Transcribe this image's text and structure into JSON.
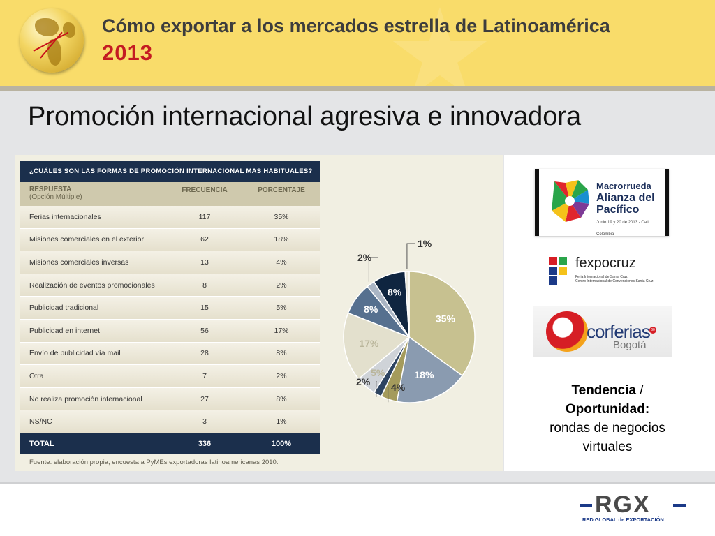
{
  "header": {
    "title": "Cómo exportar a los mercados estrella de Latinoamérica",
    "year": "2013"
  },
  "slide": {
    "title": "Promoción internacional agresiva e innovadora"
  },
  "table": {
    "question": "¿CUÁLES SON LAS FORMAS DE PROMOCIÓN INTERNACIONAL MAS HABITUALES?",
    "col_response": "RESPUESTA",
    "col_response_sub": "(Opción Múltiple)",
    "col_frequency": "FRECUENCIA",
    "col_percent": "PORCENTAJE",
    "rows": [
      {
        "label": "Ferias internacionales",
        "freq": "117",
        "pct": "35%"
      },
      {
        "label": "Misiones comerciales en el exterior",
        "freq": "62",
        "pct": "18%"
      },
      {
        "label": "Misiones comerciales inversas",
        "freq": "13",
        "pct": "4%"
      },
      {
        "label": "Realización de eventos promocionales",
        "freq": "8",
        "pct": "2%"
      },
      {
        "label": "Publicidad tradicional",
        "freq": "15",
        "pct": "5%"
      },
      {
        "label": "Publicidad en internet",
        "freq": "56",
        "pct": "17%"
      },
      {
        "label": "Envío de publicidad vía mail",
        "freq": "28",
        "pct": "8%"
      },
      {
        "label": "Otra",
        "freq": "7",
        "pct": "2%"
      },
      {
        "label": "No realiza promoción internacional",
        "freq": "27",
        "pct": "8%"
      },
      {
        "label": "NS/NC",
        "freq": "3",
        "pct": "1%"
      }
    ],
    "total_label": "TOTAL",
    "total_freq": "336",
    "total_pct": "100%",
    "source": "Fuente: elaboración propia, encuesta a PyMEs exportadoras latinoamericanas 2010."
  },
  "chart_data": {
    "type": "pie",
    "slices": [
      {
        "label": "35%",
        "value": 35,
        "color": "#c7c190"
      },
      {
        "label": "18%",
        "value": 18,
        "color": "#8a9bb0"
      },
      {
        "label": "4%",
        "value": 4,
        "color": "#a49b5c"
      },
      {
        "label": "2%",
        "value": 2,
        "color": "#2d4461"
      },
      {
        "label": "5%",
        "value": 5,
        "color": "#cfd3d8"
      },
      {
        "label": "17%",
        "value": 17,
        "color": "#e3e0cd"
      },
      {
        "label": "8%",
        "value": 8,
        "color": "#56708f"
      },
      {
        "label": "2%",
        "value": 2,
        "color": "#aab5c4"
      },
      {
        "label": "8%",
        "value": 8,
        "color": "#0f2540"
      },
      {
        "label": "1%",
        "value": 1,
        "color": "#e9e7db"
      }
    ]
  },
  "logos": {
    "macro_line1": "Macrorrueda",
    "macro_line2": "Alianza del",
    "macro_line3": "Pacífico",
    "macro_date": "Junio 19 y 20 de 2013 - Cali, Colombia",
    "fexpo_name": "fexpocruz",
    "fexpo_sub1": "Feria Internacional de Santa Cruz",
    "fexpo_sub2": "Centro Internacional de Convenciones Santa Cruz",
    "corferias_name": "corferias",
    "corferias_city": "Bogotá",
    "corferias_badge": "60"
  },
  "trend": {
    "label_bold": "Tendencia",
    "slash": " /",
    "label_bold2": "Oportunidad:",
    "text1": "rondas de negocios",
    "text2": "virtuales"
  },
  "footer": {
    "logo_mark": "RGX",
    "logo_sub": "RED GLOBAL de EXPORTACIÓN"
  },
  "colors": {
    "header_bg": "#f9dc6a",
    "navy": "#1b2f4c",
    "year_red": "#c41b22"
  }
}
